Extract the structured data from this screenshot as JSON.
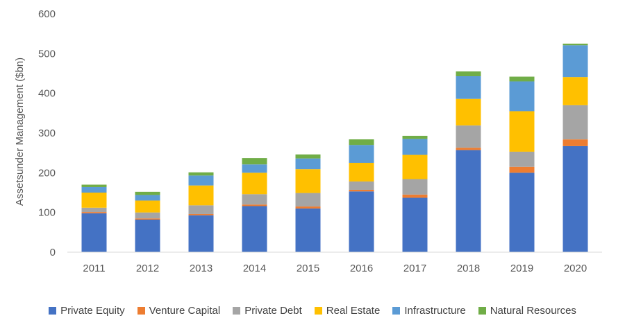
{
  "chart_data": {
    "type": "bar",
    "stacked": true,
    "title": "",
    "xlabel": "",
    "ylabel": "Assetsunder Management ($bn)",
    "ylim": [
      0,
      600
    ],
    "yticks": [
      0,
      100,
      200,
      300,
      400,
      500,
      600
    ],
    "grid": false,
    "legend_position": "bottom",
    "categories": [
      "2011",
      "2012",
      "2013",
      "2014",
      "2015",
      "2016",
      "2017",
      "2018",
      "2019",
      "2020"
    ],
    "series": [
      {
        "name": "Private Equity",
        "color": "#4472C4",
        "values": [
          98,
          82,
          93,
          116,
          110,
          153,
          137,
          257,
          200,
          267
        ]
      },
      {
        "name": "Venture Capital",
        "color": "#ED7D31",
        "values": [
          3,
          3,
          3,
          4,
          5,
          4,
          8,
          6,
          15,
          17
        ]
      },
      {
        "name": "Private Debt",
        "color": "#A5A5A5",
        "values": [
          11,
          15,
          22,
          26,
          34,
          21,
          39,
          56,
          38,
          86
        ]
      },
      {
        "name": "Real Estate",
        "color": "#FFC000",
        "values": [
          38,
          30,
          50,
          54,
          60,
          47,
          61,
          67,
          102,
          71
        ]
      },
      {
        "name": "Infrastructure",
        "color": "#5B9BD5",
        "values": [
          14,
          14,
          25,
          21,
          27,
          45,
          40,
          57,
          75,
          80
        ]
      },
      {
        "name": "Natural Resources",
        "color": "#70AD47",
        "values": [
          6,
          8,
          8,
          16,
          10,
          14,
          8,
          12,
          12,
          4
        ]
      }
    ]
  }
}
